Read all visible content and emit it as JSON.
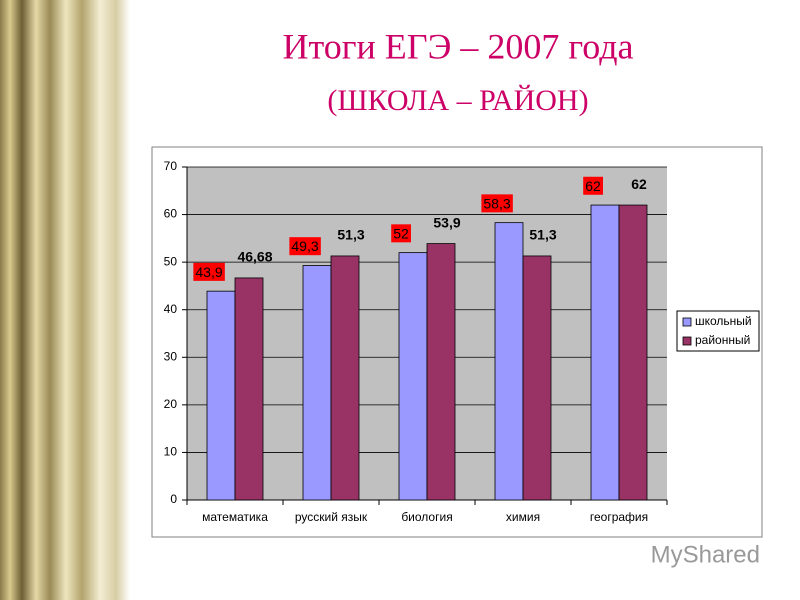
{
  "chart_data": {
    "type": "bar",
    "title": "Итоги ЕГЭ – 2007 года",
    "subtitle": "(ШКОЛА – РАЙОН)",
    "categories": [
      "математика",
      "русский язык",
      "биология",
      "химия",
      "география"
    ],
    "series": [
      {
        "name": "школьный",
        "color": "#9999ff",
        "values": [
          43.9,
          49.3,
          52,
          58.3,
          62
        ],
        "value_labels": [
          "43,9",
          "49,3",
          "52",
          "58,3",
          "62"
        ]
      },
      {
        "name": "районный",
        "color": "#993366",
        "values": [
          46.68,
          51.3,
          53.9,
          51.3,
          62
        ],
        "value_labels": [
          "46,68",
          "51,3",
          "53,9",
          "51,3",
          "62"
        ]
      }
    ],
    "ylim": [
      0,
      70
    ],
    "yticks": [
      0,
      10,
      20,
      30,
      40,
      50,
      60,
      70
    ],
    "grid": true,
    "legend": "right",
    "watermark": "MyShared"
  }
}
